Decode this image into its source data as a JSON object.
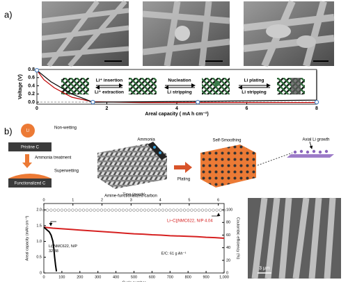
{
  "figure": {
    "panel_a": "a)",
    "panel_b": "b)",
    "a_annotations": [
      "Li⁺ insertion",
      "Li⁺ extraction",
      "Nucleation",
      "Li stripping",
      "Li plating",
      "Li stripping"
    ],
    "b_diagram": {
      "li": "Li",
      "non_wetting": "Non-wetting",
      "pristine": "Pristine C",
      "treatment": "Ammonia treatment",
      "superwetting": "Superwetting",
      "functionalized": "Functionalized C",
      "ammonia": "Ammonia",
      "amine_carbon": "Amine-functionalized carbon",
      "plating": "Plating",
      "self_smoothing": "Self-Smoothing",
      "axial": "Axial Li growth"
    },
    "sem_scale": "3 μm"
  },
  "chart_data": [
    {
      "type": "line",
      "xlabel": "Areal capacity ( mA h cm⁻²)",
      "ylabel": "Voltage (V)",
      "xlim": [
        0,
        8
      ],
      "ylim": [
        -0.05,
        0.8
      ],
      "xticks": [
        0,
        2,
        4,
        6,
        8
      ],
      "yticks": [
        {
          "value": 0,
          "label": "0.0"
        },
        0.2,
        0.4,
        0.6,
        0.8
      ],
      "reference_line": 0,
      "series": [
        {
          "color": "#c00000",
          "x": [
            0,
            0.2,
            0.5,
            1,
            1.6,
            3,
            4.6,
            6,
            8
          ],
          "values": [
            0.78,
            0.55,
            0.35,
            0.12,
            0.01,
            -0.01,
            -0.01,
            -0.01,
            -0.01
          ]
        },
        {
          "color": "#000000",
          "x": [
            0,
            0.4,
            1,
            1.6,
            4.6,
            8,
            8
          ],
          "values": [
            0.78,
            0.5,
            0.2,
            0,
            0.02,
            0.05,
            0.78
          ]
        }
      ],
      "markers": {
        "color": "#4a7fc1",
        "x": [
          0,
          1.6,
          4.6,
          8
        ],
        "values": [
          0.78,
          0,
          0,
          0
        ]
      }
    },
    {
      "type": "line",
      "xlabel": "Cycle number",
      "ylabel": "Areal capacity (mAh cm⁻²)",
      "x2label": "Time (month)",
      "y2label": "Coulombic efficiency (%)",
      "xlim": [
        0,
        1000
      ],
      "xticks": [
        0,
        100,
        200,
        300,
        400,
        500,
        600,
        700,
        800,
        900,
        {
          "value": 1000,
          "label": "1,000"
        }
      ],
      "x2lim": [
        0,
        6.2
      ],
      "x2ticks": [
        0,
        1,
        2,
        3,
        4,
        5,
        6
      ],
      "ylim": [
        0,
        2.2
      ],
      "yticks": [
        0,
        0.5,
        {
          "value": 1,
          "label": "1.0"
        },
        1.5,
        {
          "value": 2,
          "label": "2.0"
        }
      ],
      "y2lim": [
        0,
        110
      ],
      "y2ticks": [
        0,
        20,
        40,
        60,
        80,
        100
      ],
      "annotation": "E/C: 61 g Ah⁻¹",
      "series": [
        {
          "name": "Li–C||NMC622, N/P 4.04",
          "color": "#d62020",
          "x": [
            1,
            50,
            100,
            150,
            200,
            250,
            300,
            350,
            400,
            450,
            500,
            550,
            600,
            650,
            700,
            750,
            800,
            850,
            900,
            950,
            1000
          ],
          "values": [
            1.45,
            1.42,
            1.4,
            1.38,
            1.36,
            1.34,
            1.32,
            1.3,
            1.28,
            1.26,
            1.24,
            1.23,
            1.21,
            1.2,
            1.18,
            1.17,
            1.16,
            1.15,
            1.13,
            1.12,
            1.1
          ]
        },
        {
          "name": "Li||NMC622, N/P 32.38",
          "color": "#000000",
          "x": [
            1,
            10,
            20,
            30,
            40,
            50,
            55,
            60,
            65,
            70
          ],
          "values": [
            1.45,
            1.4,
            1.35,
            1.3,
            1.2,
            1.0,
            0.8,
            0.5,
            0.25,
            0.05
          ]
        },
        {
          "color": "#777777",
          "axis": "y2",
          "marker": "circle",
          "x": [
            0,
            20,
            40,
            60,
            80,
            100,
            120,
            140,
            160,
            180,
            200,
            220,
            240,
            260,
            280,
            300,
            320,
            340,
            360,
            380,
            400,
            420,
            440,
            460,
            480,
            500,
            520,
            540,
            560,
            580,
            600,
            620,
            640,
            660,
            680,
            700,
            720,
            740,
            760,
            780,
            800,
            820,
            840,
            860,
            880,
            900,
            920,
            940,
            960,
            980,
            1000
          ],
          "values": [
            99.5,
            99.5,
            99.5,
            99.5,
            99.5,
            99.5,
            99.5,
            99.5,
            99.5,
            99.5,
            99.5,
            99.5,
            99.5,
            99.5,
            99.5,
            99.5,
            99.5,
            99.5,
            99.5,
            99.5,
            99.5,
            99.5,
            99.5,
            99.5,
            99.5,
            99.5,
            99.5,
            99.5,
            99.5,
            99.5,
            99.5,
            99.5,
            99.5,
            99.5,
            99.5,
            99.5,
            99.5,
            99.5,
            99.5,
            99.5,
            99.5,
            99.5,
            99.5,
            99.5,
            99.5,
            99.5,
            99.5,
            99.5,
            99.5,
            99.5,
            99.5
          ]
        }
      ]
    }
  ]
}
